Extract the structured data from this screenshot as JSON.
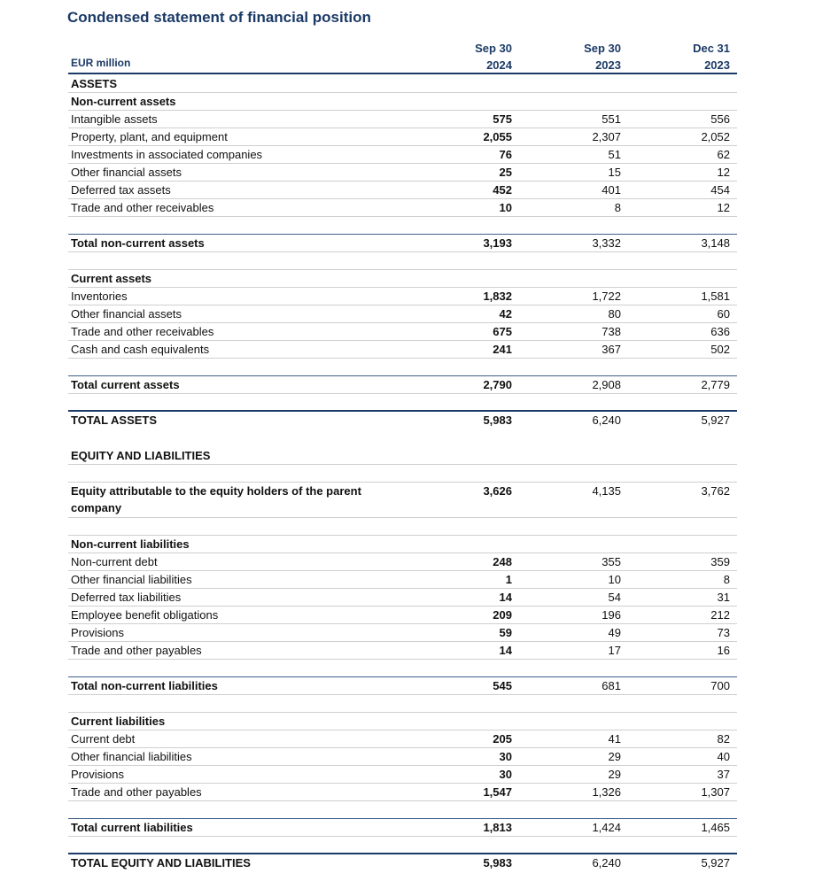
{
  "title": "Condensed statement of financial position",
  "table": {
    "unit": "EUR million",
    "columns": [
      {
        "line1": "Sep 30",
        "line2": "2024"
      },
      {
        "line1": "Sep 30",
        "line2": "2023"
      },
      {
        "line1": "Dec 31",
        "line2": "2023"
      }
    ],
    "rows": [
      {
        "label": "ASSETS"
      },
      {
        "label": "Non-current assets"
      },
      {
        "label": "Intangible assets",
        "values": [
          "575",
          "551",
          "556"
        ]
      },
      {
        "label": "Property, plant, and equipment",
        "values": [
          "2,055",
          "2,307",
          "2,052"
        ]
      },
      {
        "label": "Investments in associated companies",
        "values": [
          "76",
          "51",
          "62"
        ]
      },
      {
        "label": "Other financial assets",
        "values": [
          "25",
          "15",
          "12"
        ]
      },
      {
        "label": "Deferred tax assets",
        "values": [
          "452",
          "401",
          "454"
        ]
      },
      {
        "label": "Trade and other receivables",
        "values": [
          "10",
          "8",
          "12"
        ]
      },
      {
        "label": "Total non-current assets",
        "values": [
          "3,193",
          "3,332",
          "3,148"
        ]
      },
      {
        "label": "Current assets"
      },
      {
        "label": "Inventories",
        "values": [
          "1,832",
          "1,722",
          "1,581"
        ]
      },
      {
        "label": "Other financial assets",
        "values": [
          "42",
          "80",
          "60"
        ]
      },
      {
        "label": "Trade and other receivables",
        "values": [
          "675",
          "738",
          "636"
        ]
      },
      {
        "label": "Cash and cash equivalents",
        "values": [
          "241",
          "367",
          "502"
        ]
      },
      {
        "label": "Total current assets",
        "values": [
          "2,790",
          "2,908",
          "2,779"
        ]
      },
      {
        "label": "TOTAL ASSETS",
        "values": [
          "5,983",
          "6,240",
          "5,927"
        ]
      },
      {
        "label": "EQUITY AND LIABILITIES"
      },
      {
        "label": "Equity attributable to the equity holders of the parent company",
        "values": [
          "3,626",
          "4,135",
          "3,762"
        ]
      },
      {
        "label": "Non-current liabilities"
      },
      {
        "label": "Non-current debt",
        "values": [
          "248",
          "355",
          "359"
        ]
      },
      {
        "label": "Other financial liabilities",
        "values": [
          "1",
          "10",
          "8"
        ]
      },
      {
        "label": "Deferred tax liabilities",
        "values": [
          "14",
          "54",
          "31"
        ]
      },
      {
        "label": "Employee benefit obligations",
        "values": [
          "209",
          "196",
          "212"
        ]
      },
      {
        "label": "Provisions",
        "values": [
          "59",
          "49",
          "73"
        ]
      },
      {
        "label": "Trade and other payables",
        "values": [
          "14",
          "17",
          "16"
        ]
      },
      {
        "label": "Total non-current liabilities",
        "values": [
          "545",
          "681",
          "700"
        ]
      },
      {
        "label": "Current liabilities"
      },
      {
        "label": "Current debt",
        "values": [
          "205",
          "41",
          "82"
        ]
      },
      {
        "label": "Other financial liabilities",
        "values": [
          "30",
          "29",
          "40"
        ]
      },
      {
        "label": "Provisions",
        "values": [
          "30",
          "29",
          "37"
        ]
      },
      {
        "label": "Trade and other payables",
        "values": [
          "1,547",
          "1,326",
          "1,307"
        ]
      },
      {
        "label": "Total current liabilities",
        "values": [
          "1,813",
          "1,424",
          "1,465"
        ]
      },
      {
        "label": "TOTAL EQUITY AND LIABILITIES",
        "values": [
          "5,983",
          "6,240",
          "5,927"
        ]
      }
    ]
  }
}
